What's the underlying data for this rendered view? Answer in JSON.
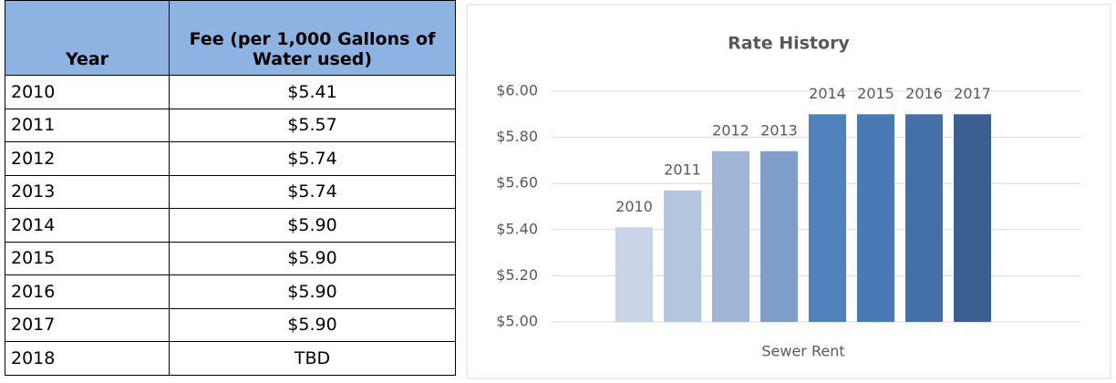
{
  "table": {
    "header": [
      "Year",
      "Fee (per 1,000 Gallons of Water used)"
    ],
    "rows": [
      [
        "2010",
        "$5.41"
      ],
      [
        "2011",
        "$5.57"
      ],
      [
        "2012",
        "$5.74"
      ],
      [
        "2013",
        "$5.74"
      ],
      [
        "2014",
        "$5.90"
      ],
      [
        "2015",
        "$5.90"
      ],
      [
        "2016",
        "$5.90"
      ],
      [
        "2017",
        "$5.90"
      ],
      [
        "2018",
        "TBD"
      ]
    ]
  },
  "chart_data": {
    "type": "bar",
    "title": "Rate History",
    "categories": [
      "Sewer Rent"
    ],
    "series": [
      {
        "name": "2010",
        "color": "#c9d4e7",
        "values": [
          5.41
        ]
      },
      {
        "name": "2011",
        "color": "#b4c5e0",
        "values": [
          5.57
        ]
      },
      {
        "name": "2012",
        "color": "#9fb4d7",
        "values": [
          5.74
        ]
      },
      {
        "name": "2013",
        "color": "#7f9dc9",
        "values": [
          5.74
        ]
      },
      {
        "name": "2014",
        "color": "#4f81bd",
        "values": [
          5.9
        ]
      },
      {
        "name": "2015",
        "color": "#4a7ab5",
        "values": [
          5.9
        ]
      },
      {
        "name": "2016",
        "color": "#4470a8",
        "values": [
          5.9
        ]
      },
      {
        "name": "2017",
        "color": "#3b5f91",
        "values": [
          5.9
        ]
      }
    ],
    "ylim": [
      5,
      6
    ],
    "yticks": [
      {
        "value": 5,
        "label": "$5.00"
      },
      {
        "value": 5.2,
        "label": "$5.20"
      },
      {
        "value": 5.4,
        "label": "$5.40"
      },
      {
        "value": 5.6,
        "label": "$5.60"
      },
      {
        "value": 5.8,
        "label": "$5.80"
      },
      {
        "value": 6,
        "label": "$6.00"
      }
    ],
    "grid": true
  }
}
